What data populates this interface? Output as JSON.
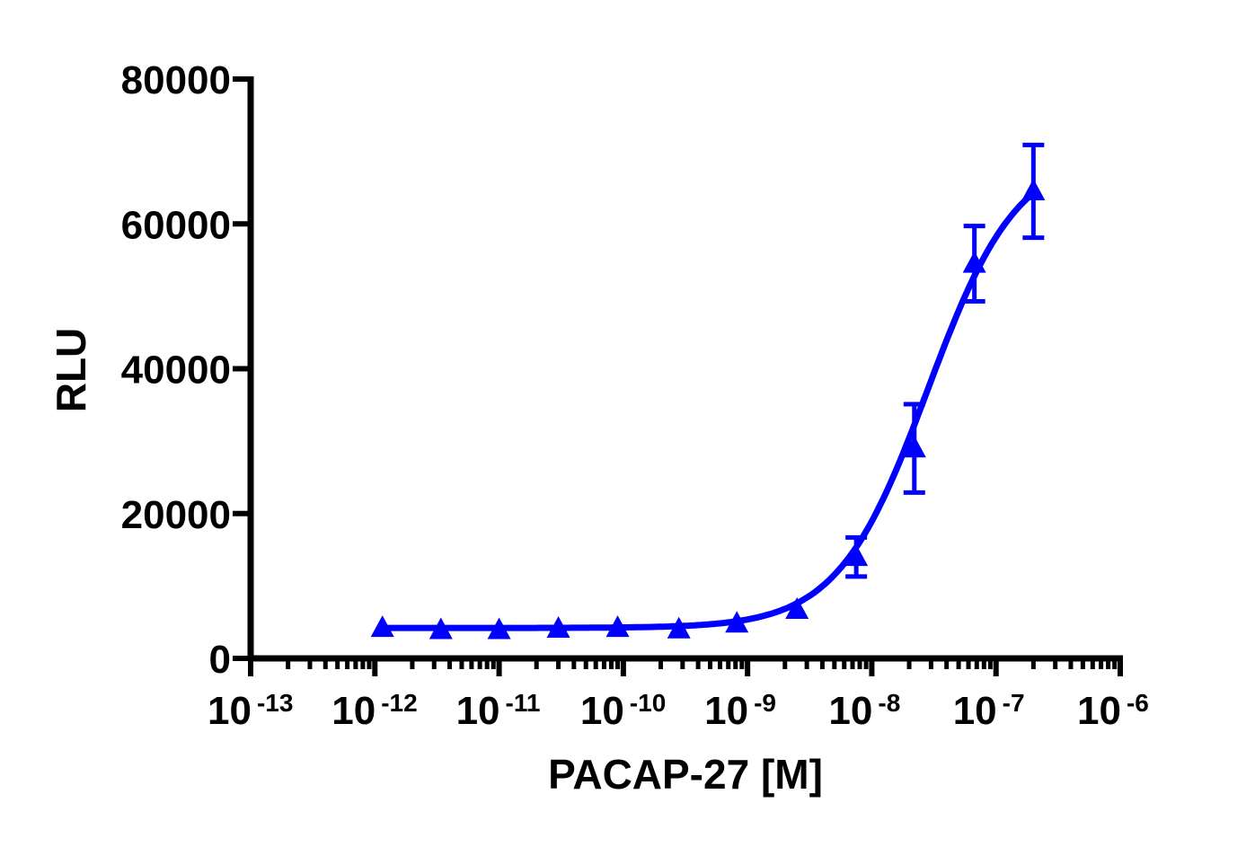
{
  "chart_data": {
    "type": "scatter",
    "title": "",
    "xlabel": "PACAP-27 [M]",
    "ylabel": "RLU",
    "xscale": "log",
    "xlim_log10": [
      -13,
      -6
    ],
    "ylim": [
      0,
      80000
    ],
    "x_ticks": [
      {
        "base": "10",
        "exp": "-13"
      },
      {
        "base": "10",
        "exp": "-12"
      },
      {
        "base": "10",
        "exp": "-11"
      },
      {
        "base": "10",
        "exp": "-10"
      },
      {
        "base": "10",
        "exp": "-9"
      },
      {
        "base": "10",
        "exp": "-8"
      },
      {
        "base": "10",
        "exp": "-7"
      },
      {
        "base": "10",
        "exp": "-6"
      }
    ],
    "y_ticks": [
      "0",
      "20000",
      "40000",
      "60000",
      "80000"
    ],
    "y_tick_values": [
      0,
      20000,
      40000,
      60000,
      80000
    ],
    "grid": false,
    "series": [
      {
        "name": "PACAP-27",
        "color": "#0000ff",
        "marker": "triangle",
        "x": [
          1.15e-12,
          3.4e-12,
          1e-11,
          3e-11,
          9e-11,
          2.8e-10,
          8.2e-10,
          2.5e-09,
          7.5e-09,
          2.2e-08,
          6.7e-08,
          2e-07
        ],
        "y": [
          4200,
          3900,
          3900,
          4100,
          4200,
          4000,
          4800,
          6700,
          14000,
          29000,
          54500,
          64500
        ],
        "error": [
          0,
          0,
          0,
          0,
          0,
          0,
          0,
          0,
          2700,
          6100,
          5200,
          6400
        ],
        "fit": {
          "model": "sigmoidal dose-response",
          "bottom": 4200,
          "top": 70000,
          "log_ec50": -7.55,
          "hill": 1.2
        }
      }
    ]
  }
}
